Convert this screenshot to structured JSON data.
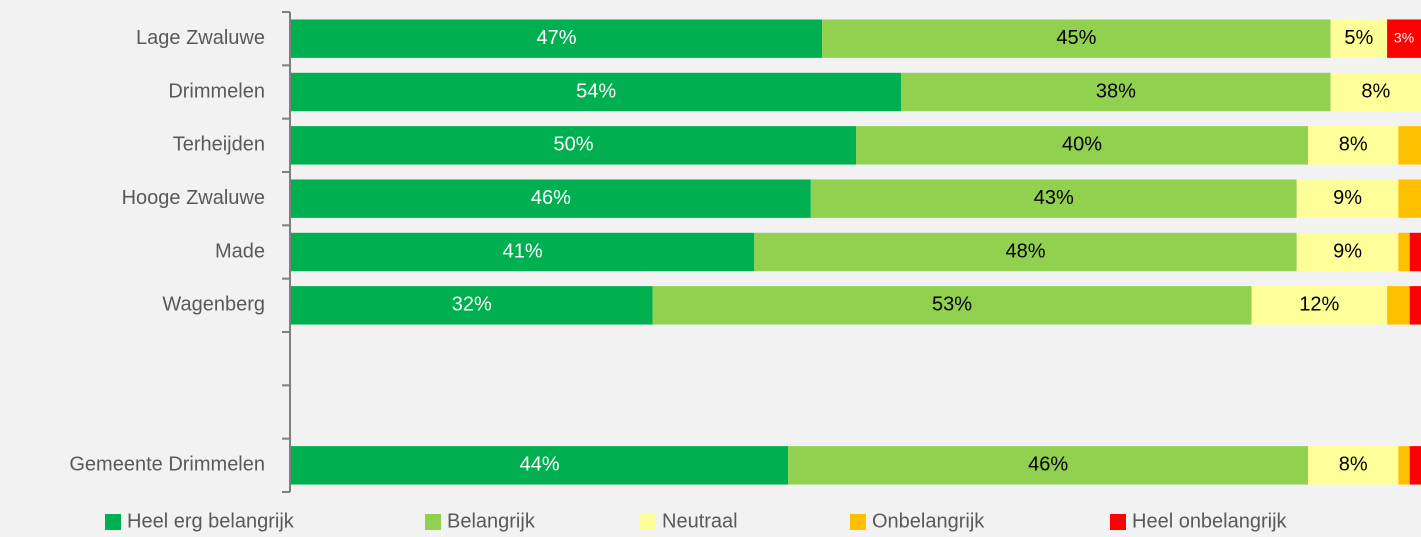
{
  "chart_data": {
    "type": "stacked-bar-horizontal",
    "categories": [
      "Lage Zwaluwe",
      "Drimmelen",
      "Terheijden",
      "Hooge Zwaluwe",
      "Made",
      "Wagenberg",
      null,
      null,
      "Gemeente Drimmelen"
    ],
    "xlim": [
      0,
      100
    ],
    "series": [
      {
        "name": "Heel erg belangrijk",
        "color": "#00b050",
        "label_color": "#ffffff",
        "values": [
          47,
          54,
          50,
          46,
          41,
          32,
          null,
          null,
          44
        ],
        "value_labels": [
          "47%",
          "54%",
          "50%",
          "46%",
          "41%",
          "32%",
          null,
          null,
          "44%"
        ]
      },
      {
        "name": "Belangrijk",
        "color": "#92d050",
        "label_color": "#000000",
        "values": [
          45,
          38,
          40,
          43,
          48,
          53,
          null,
          null,
          46
        ],
        "value_labels": [
          "45%",
          "38%",
          "40%",
          "43%",
          "48%",
          "53%",
          null,
          null,
          "46%"
        ]
      },
      {
        "name": "Neutraal",
        "color": "#ffff99",
        "label_color": "#000000",
        "values": [
          5,
          8,
          8,
          9,
          9,
          12,
          null,
          null,
          8
        ],
        "value_labels": [
          "5%",
          "8%",
          "8%",
          "9%",
          "9%",
          "12%",
          null,
          null,
          "8%"
        ]
      },
      {
        "name": "Onbelangrijk",
        "color": "#ffc000",
        "label_color": "#000000",
        "values": [
          0,
          0,
          2,
          2,
          1,
          2,
          null,
          null,
          1
        ],
        "value_labels": [
          null,
          null,
          null,
          null,
          null,
          null,
          null,
          null,
          null
        ]
      },
      {
        "name": "Heel onbelangrijk",
        "color": "#ff0000",
        "label_color": "#ffffff",
        "values": [
          3,
          0,
          0,
          0,
          1,
          1,
          null,
          null,
          1
        ],
        "value_labels": [
          "3%",
          null,
          null,
          null,
          null,
          null,
          null,
          null,
          null
        ]
      }
    ],
    "legend": "bottom"
  }
}
